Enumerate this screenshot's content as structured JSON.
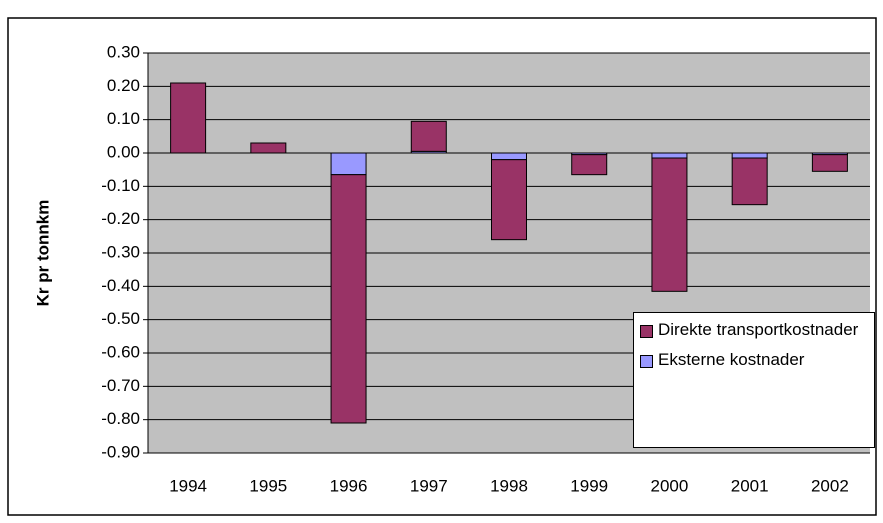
{
  "chart_data": {
    "type": "stacked-bar",
    "y_label": "Kr pr tonnkm",
    "categories": [
      "1994",
      "1995",
      "1996",
      "1997",
      "1998",
      "1999",
      "2000",
      "2001",
      "2002"
    ],
    "series": [
      {
        "name": "Eksterne kostnader",
        "color": "#9999ff",
        "values": [
          0,
          0,
          -0.065,
          0.005,
          -0.02,
          -0.005,
          -0.015,
          -0.015,
          -0.005
        ]
      },
      {
        "name": "Direkte transportkostnader",
        "color": "#993366",
        "values": [
          0.21,
          0.03,
          -0.745,
          0.09,
          -0.24,
          -0.06,
          -0.4,
          -0.14,
          -0.05
        ]
      }
    ],
    "legend_order": [
      1,
      0
    ],
    "ylim": [
      -0.9,
      0.3
    ],
    "yticks": [
      {
        "value": -0.9,
        "label": "-0.90"
      },
      {
        "value": -0.8,
        "label": "-0.80"
      },
      {
        "value": -0.7,
        "label": "-0.70"
      },
      {
        "value": -0.6,
        "label": "-0.60"
      },
      {
        "value": -0.5,
        "label": "-0.50"
      },
      {
        "value": -0.4,
        "label": "-0.40"
      },
      {
        "value": -0.3,
        "label": "-0.30"
      },
      {
        "value": -0.2,
        "label": "-0.20"
      },
      {
        "value": -0.1,
        "label": "-0.10"
      },
      {
        "value": 0,
        "label": "0.00"
      },
      {
        "value": 0.1,
        "label": "0.10"
      },
      {
        "value": 0.2,
        "label": "0.20"
      },
      {
        "value": 0.3,
        "label": "0.30"
      }
    ],
    "grid": true,
    "plot_color": "#c0c0c0"
  }
}
